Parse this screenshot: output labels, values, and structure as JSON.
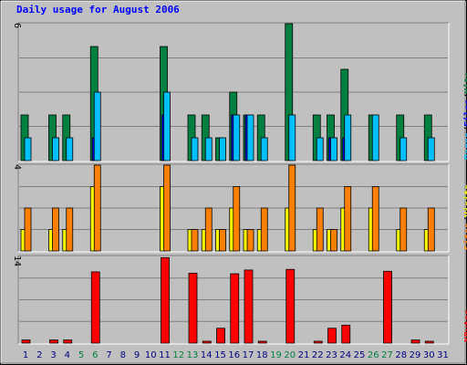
{
  "chart_data": {
    "type": "bar",
    "title": "Daily usage for August 2006",
    "x": [
      1,
      2,
      3,
      4,
      5,
      6,
      7,
      8,
      9,
      10,
      11,
      12,
      13,
      14,
      15,
      16,
      17,
      18,
      19,
      20,
      21,
      22,
      23,
      24,
      25,
      26,
      27,
      28,
      29,
      30,
      31
    ],
    "weekend_days": [
      5,
      6,
      12,
      13,
      19,
      20,
      26,
      27
    ],
    "panels": [
      {
        "name": "hits-files-pages",
        "scale_label": "6",
        "ymax": 6,
        "series": [
          {
            "name": "Hits",
            "color": "#008040",
            "values": [
              2,
              0,
              2,
              2,
              0,
              5,
              0,
              0,
              0,
              0,
              5,
              0,
              2,
              2,
              1,
              3,
              2,
              2,
              0,
              6,
              0,
              2,
              2,
              4,
              0,
              2,
              0,
              2,
              0,
              2,
              0
            ]
          },
          {
            "name": "Files",
            "color": "#0000ff",
            "values": [
              0,
              0,
              0,
              0,
              0,
              1,
              0,
              0,
              0,
              0,
              2,
              0,
              0,
              0,
              0,
              2,
              2,
              0,
              0,
              0,
              0,
              0,
              1,
              1,
              0,
              0,
              0,
              0,
              0,
              0,
              0
            ]
          },
          {
            "name": "Pages",
            "color": "#00c0ff",
            "values": [
              1,
              0,
              1,
              1,
              0,
              3,
              0,
              0,
              0,
              0,
              3,
              0,
              1,
              1,
              1,
              2,
              2,
              1,
              0,
              2,
              0,
              1,
              1,
              2,
              0,
              2,
              0,
              1,
              0,
              1,
              0
            ]
          }
        ]
      },
      {
        "name": "visits-sites",
        "scale_label": "4",
        "ymax": 4,
        "series": [
          {
            "name": "Visits",
            "color": "#ffff00",
            "values": [
              1,
              0,
              1,
              1,
              0,
              3,
              0,
              0,
              0,
              0,
              3,
              0,
              1,
              1,
              1,
              2,
              1,
              1,
              0,
              2,
              0,
              1,
              1,
              2,
              0,
              2,
              0,
              1,
              0,
              1,
              0
            ]
          },
          {
            "name": "Sites",
            "color": "#ff8000",
            "values": [
              2,
              0,
              2,
              2,
              0,
              4,
              0,
              0,
              0,
              0,
              4,
              0,
              1,
              2,
              1,
              3,
              1,
              2,
              0,
              4,
              0,
              2,
              1,
              3,
              0,
              3,
              0,
              2,
              0,
              2,
              0
            ]
          }
        ]
      },
      {
        "name": "kbytes",
        "scale_label": "14",
        "ymax": 14,
        "series": [
          {
            "name": "KBytes",
            "color": "#ff0000",
            "values": [
              0.5,
              0,
              0.5,
              0.5,
              0,
              11.5,
              0,
              0,
              0,
              0,
              13.8,
              0,
              11.3,
              0.3,
              2.4,
              11.2,
              11.8,
              0.3,
              0,
              11.9,
              0,
              0.3,
              2.4,
              2.9,
              0,
              0,
              11.6,
              0,
              0.5,
              0.3,
              0
            ]
          }
        ]
      }
    ],
    "right_labels": [
      {
        "panel": "hits-files-pages",
        "parts": [
          [
            "Pages",
            "#00c0ff"
          ],
          [
            "/",
            "#000000"
          ],
          [
            "Files",
            "#0000ff"
          ],
          [
            "/",
            "#000000"
          ],
          [
            "Hits",
            "#008040"
          ]
        ]
      },
      {
        "panel": "visits-sites",
        "parts": [
          [
            "Sites",
            "#ff8000"
          ],
          [
            "/",
            "#000000"
          ],
          [
            "Visits",
            "#ffff00"
          ]
        ]
      },
      {
        "panel": "kbytes",
        "parts": [
          [
            "KBytes",
            "#ff0000"
          ]
        ]
      }
    ],
    "colors": {
      "background": "#c0c0c0",
      "weekday_label": "#000080",
      "weekend_label": "#008040",
      "title": "#0000ff"
    }
  }
}
